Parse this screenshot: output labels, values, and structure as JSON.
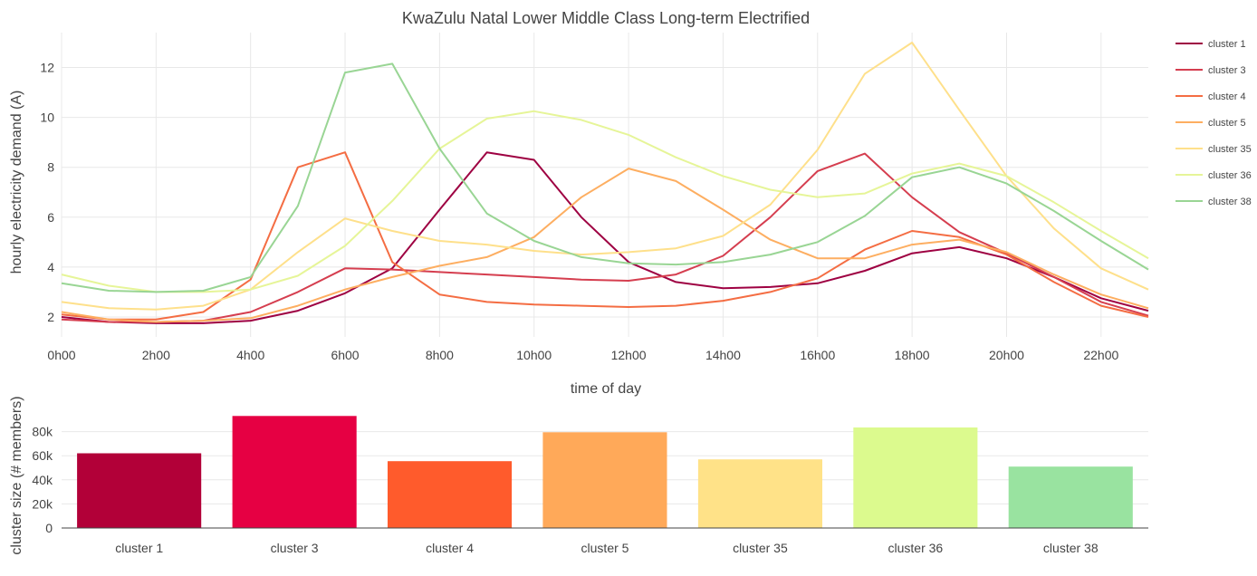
{
  "chart_data": [
    {
      "type": "line",
      "title": "KwaZulu Natal Lower Middle Class Long-term Electrified",
      "xlabel": "time of day",
      "ylabel": "hourly electricity demand (A)",
      "x": [
        0,
        1,
        2,
        3,
        4,
        5,
        6,
        7,
        8,
        9,
        10,
        11,
        12,
        13,
        14,
        15,
        16,
        17,
        18,
        19,
        20,
        21,
        22,
        23
      ],
      "x_tick_values": [
        0,
        2,
        4,
        6,
        8,
        10,
        12,
        14,
        16,
        18,
        20,
        22
      ],
      "x_tick_labels": [
        "0h00",
        "2h00",
        "4h00",
        "6h00",
        "8h00",
        "10h00",
        "12h00",
        "14h00",
        "16h00",
        "18h00",
        "20h00",
        "22h00"
      ],
      "xlim": [
        0,
        23
      ],
      "ylim": [
        1.2,
        13.4
      ],
      "y_ticks": [
        2,
        4,
        6,
        8,
        10,
        12
      ],
      "grid": true,
      "legend_position": "right",
      "series": [
        {
          "name": "cluster 1",
          "color": "#9e0142",
          "values": [
            2.0,
            1.8,
            1.75,
            1.75,
            1.85,
            2.25,
            2.95,
            3.95,
            6.3,
            8.6,
            8.3,
            6.0,
            4.2,
            3.4,
            3.15,
            3.2,
            3.35,
            3.85,
            4.55,
            4.8,
            4.35,
            3.6,
            2.75,
            2.25
          ]
        },
        {
          "name": "cluster 3",
          "color": "#d53e4f",
          "values": [
            1.9,
            1.8,
            1.8,
            1.85,
            2.2,
            3.0,
            3.95,
            3.9,
            3.8,
            3.7,
            3.6,
            3.5,
            3.45,
            3.7,
            4.45,
            6.0,
            7.85,
            8.55,
            6.8,
            5.4,
            4.55,
            3.6,
            2.6,
            2.05
          ]
        },
        {
          "name": "cluster 4",
          "color": "#f46d43",
          "values": [
            2.1,
            1.9,
            1.9,
            2.2,
            3.5,
            8.0,
            8.6,
            4.2,
            2.9,
            2.6,
            2.5,
            2.45,
            2.4,
            2.45,
            2.65,
            3.0,
            3.55,
            4.7,
            5.45,
            5.2,
            4.5,
            3.4,
            2.45,
            2.0
          ]
        },
        {
          "name": "cluster 5",
          "color": "#fdae61",
          "values": [
            2.2,
            1.9,
            1.8,
            1.85,
            1.95,
            2.45,
            3.1,
            3.6,
            4.05,
            4.4,
            5.2,
            6.8,
            7.95,
            7.45,
            6.3,
            5.1,
            4.35,
            4.35,
            4.9,
            5.1,
            4.6,
            3.7,
            2.9,
            2.35
          ]
        },
        {
          "name": "cluster 35",
          "color": "#fee08b",
          "values": [
            2.6,
            2.35,
            2.3,
            2.45,
            3.1,
            4.6,
            5.95,
            5.45,
            5.05,
            4.9,
            4.65,
            4.5,
            4.6,
            4.75,
            5.25,
            6.5,
            8.7,
            11.75,
            13.0,
            10.3,
            7.65,
            5.55,
            3.95,
            3.1
          ]
        },
        {
          "name": "cluster 36",
          "color": "#e6f598",
          "values": [
            3.7,
            3.25,
            3.0,
            3.0,
            3.1,
            3.65,
            4.85,
            6.65,
            8.75,
            9.95,
            10.25,
            9.9,
            9.3,
            8.4,
            7.65,
            7.1,
            6.8,
            6.95,
            7.75,
            8.15,
            7.65,
            6.6,
            5.45,
            4.35
          ]
        },
        {
          "name": "cluster 38",
          "color": "#99d594",
          "values": [
            3.35,
            3.05,
            3.0,
            3.05,
            3.6,
            6.45,
            11.8,
            12.15,
            8.75,
            6.15,
            5.05,
            4.4,
            4.15,
            4.1,
            4.2,
            4.5,
            5.0,
            6.05,
            7.6,
            8.0,
            7.35,
            6.25,
            5.05,
            3.9
          ]
        }
      ]
    },
    {
      "type": "bar",
      "ylabel": "cluster size (# members)",
      "categories": [
        "cluster 1",
        "cluster 3",
        "cluster 4",
        "cluster 5",
        "cluster 35",
        "cluster 36",
        "cluster 38"
      ],
      "values": [
        62000,
        93000,
        55500,
        79500,
        57000,
        83500,
        51000
      ],
      "colors": [
        "#b20038",
        "#e60043",
        "#ff5b2c",
        "#ffa959",
        "#ffe288",
        "#dcfa8e",
        "#99e3a0"
      ],
      "ylim": [
        0,
        97000
      ],
      "y_ticks": [
        0,
        20000,
        40000,
        60000,
        80000
      ],
      "y_tick_labels": [
        "0",
        "20k",
        "40k",
        "60k",
        "80k"
      ],
      "grid": true
    }
  ]
}
